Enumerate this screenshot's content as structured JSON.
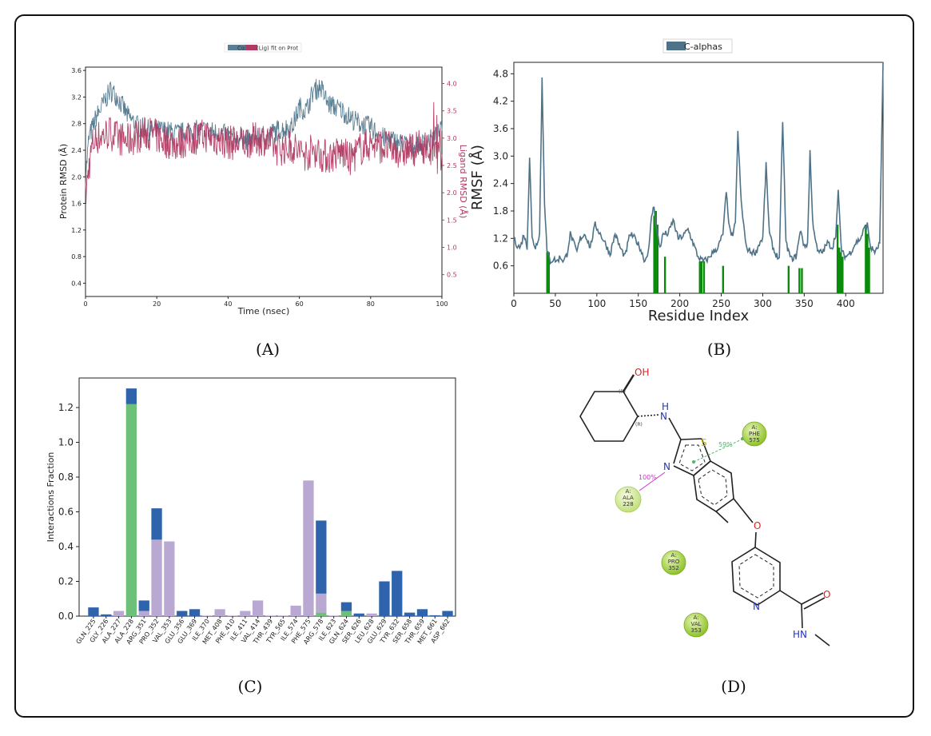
{
  "panels": {
    "a": "(A)",
    "b": "(B)",
    "c": "(C)",
    "d": "(D)"
  },
  "chart_data": [
    {
      "id": "A",
      "type": "line",
      "legend": [
        "Cα",
        "(Lig) fit on Prot"
      ],
      "legend_placement": "top-center",
      "xlabel": "Time (nsec)",
      "ylabel": "Protein RMSD (Å)",
      "y2label": "Ligand RMSD (Å)",
      "xlim": [
        0,
        100
      ],
      "ylim": [
        0.2,
        3.65
      ],
      "y2lim": [
        0.1,
        4.3
      ],
      "xticks": [
        "0",
        "20",
        "40",
        "60",
        "80",
        "100"
      ],
      "yticks": [
        "0.4",
        "0.8",
        "1.2",
        "1.6",
        "2.0",
        "2.4",
        "2.8",
        "3.2",
        "3.6"
      ],
      "y2ticks": [
        "0.5",
        "1.0",
        "1.5",
        "2.0",
        "2.5",
        "3.0",
        "3.5",
        "4.0"
      ],
      "colors": {
        "protein": "#5a7f94",
        "ligand": "#b03a61"
      },
      "series": [
        {
          "name": "Cα",
          "axis": "left",
          "x": [
            0,
            1,
            2,
            3,
            5,
            7,
            9,
            12,
            15,
            18,
            22,
            26,
            30,
            34,
            38,
            42,
            46,
            50,
            54,
            58,
            60,
            62,
            64,
            66,
            68,
            70,
            72,
            74,
            77,
            80,
            83,
            86,
            89,
            92,
            95,
            98,
            100
          ],
          "y": [
            2.0,
            2.6,
            2.75,
            2.9,
            3.1,
            3.3,
            3.2,
            2.9,
            2.75,
            2.7,
            2.7,
            2.65,
            2.7,
            2.7,
            2.65,
            2.6,
            2.55,
            2.6,
            2.7,
            2.75,
            3.05,
            3.0,
            3.3,
            3.35,
            3.1,
            3.05,
            3.0,
            2.9,
            2.8,
            2.75,
            2.6,
            2.55,
            2.5,
            2.45,
            2.5,
            2.6,
            2.7
          ]
        },
        {
          "name": "(Lig) fit on Prot",
          "axis": "right",
          "x": [
            0,
            1,
            2,
            3,
            5,
            7,
            9,
            12,
            15,
            18,
            22,
            26,
            30,
            34,
            38,
            42,
            46,
            50,
            54,
            58,
            60,
            62,
            64,
            66,
            68,
            70,
            72,
            74,
            77,
            80,
            83,
            86,
            89,
            92,
            95,
            98,
            100
          ],
          "y": [
            1.9,
            2.5,
            2.9,
            3.0,
            3.05,
            3.1,
            3.0,
            2.95,
            3.05,
            3.1,
            2.95,
            2.9,
            3.0,
            3.05,
            2.95,
            2.9,
            2.95,
            3.0,
            2.8,
            2.85,
            2.75,
            2.7,
            2.8,
            2.7,
            2.65,
            2.7,
            2.75,
            2.6,
            2.8,
            2.9,
            2.85,
            2.8,
            2.75,
            2.8,
            2.85,
            2.7,
            2.6
          ]
        }
      ]
    },
    {
      "id": "B",
      "type": "line",
      "legend": [
        "C-alphas"
      ],
      "legend_placement": "top-center",
      "xlabel": "Residue Index",
      "ylabel": "RMSF (Å)",
      "xlim": [
        0,
        445
      ],
      "ylim": [
        0,
        5.05
      ],
      "xticks": [
        "0",
        "50",
        "100",
        "150",
        "200",
        "250",
        "300",
        "350",
        "400"
      ],
      "yticks": [
        "0.6",
        "1.2",
        "1.8",
        "2.4",
        "3.0",
        "3.6",
        "4.2",
        "4.8"
      ],
      "colors": {
        "line": "#4e7287",
        "contact": "#0a8a0a"
      },
      "series": [
        {
          "name": "C-alphas",
          "x": [
            0,
            4,
            8,
            12,
            16,
            19,
            22,
            26,
            31,
            34,
            37,
            40,
            44,
            48,
            52,
            56,
            60,
            64,
            68,
            72,
            76,
            80,
            86,
            92,
            98,
            104,
            110,
            116,
            122,
            128,
            134,
            140,
            146,
            152,
            158,
            163,
            166,
            169,
            172,
            176,
            180,
            186,
            192,
            198,
            204,
            210,
            216,
            222,
            228,
            234,
            240,
            246,
            252,
            256,
            260,
            264,
            267,
            270,
            274,
            280,
            286,
            292,
            296,
            300,
            304,
            308,
            314,
            320,
            324,
            328,
            334,
            340,
            346,
            350,
            354,
            357,
            360,
            366,
            372,
            378,
            384,
            388,
            391,
            395,
            400,
            406,
            412,
            418,
            422,
            426,
            430,
            436,
            441,
            445
          ],
          "y": [
            1.2,
            1.05,
            1.0,
            1.3,
            1.0,
            3.0,
            1.2,
            1.0,
            1.3,
            4.7,
            2.0,
            0.9,
            0.7,
            0.75,
            0.7,
            0.8,
            0.7,
            0.85,
            1.3,
            1.1,
            0.9,
            1.2,
            1.3,
            1.0,
            1.5,
            1.3,
            1.1,
            0.85,
            1.3,
            1.0,
            0.8,
            1.3,
            1.2,
            1.0,
            0.7,
            1.0,
            1.7,
            1.9,
            1.4,
            1.0,
            1.3,
            1.3,
            1.6,
            1.2,
            1.25,
            1.4,
            1.1,
            0.8,
            0.7,
            0.75,
            0.9,
            1.0,
            1.3,
            2.2,
            1.4,
            1.2,
            1.6,
            3.5,
            2.0,
            1.0,
            0.9,
            0.9,
            1.1,
            1.2,
            2.8,
            1.3,
            0.9,
            0.75,
            3.8,
            1.1,
            0.75,
            0.8,
            1.4,
            1.0,
            1.1,
            3.1,
            1.6,
            0.9,
            0.9,
            1.1,
            1.0,
            1.3,
            2.2,
            0.9,
            0.8,
            0.9,
            1.1,
            1.2,
            1.4,
            1.5,
            1.0,
            0.9,
            1.1,
            5.0
          ]
        },
        {
          "name": "contacts",
          "x": [
            40,
            42,
            169,
            171,
            173,
            182,
            224,
            226,
            229,
            252,
            331,
            344,
            347,
            390,
            392,
            394,
            396,
            424,
            426,
            428
          ],
          "y": [
            0.9,
            0.9,
            1.7,
            1.8,
            1.5,
            0.8,
            0.7,
            0.7,
            0.7,
            0.6,
            0.6,
            0.55,
            0.55,
            1.5,
            1.0,
            0.9,
            0.8,
            1.5,
            1.3,
            1.0
          ]
        }
      ]
    },
    {
      "id": "C",
      "type": "bar",
      "ylabel": "Interactions Fraction",
      "ylim": [
        0,
        1.37
      ],
      "yticks": [
        "0.0",
        "0.2",
        "0.4",
        "0.6",
        "0.8",
        "1.0",
        "1.2"
      ],
      "categories": [
        "GLN_225",
        "GLY_226",
        "ALA_227",
        "ALA_228",
        "ARG_351",
        "PRO_352",
        "VAL_353",
        "GLU_356",
        "GLU_369",
        "ILE_370",
        "MET_408",
        "PHE_410",
        "ILE_411",
        "VAL_414",
        "THR_439",
        "TYR_565",
        "ILE_574",
        "PHE_575",
        "ARG_578",
        "ILE_623",
        "GLN_624",
        "SER_626",
        "LEU_628",
        "GLU_629",
        "TYR_632",
        "SER_658",
        "THR_659",
        "MET_661",
        "ASP_662"
      ],
      "colors": {
        "H-bonds": "#6cc07a",
        "Hydrophobic": "#b9a9d2",
        "Water bridges": "#2f64ad"
      },
      "series": [
        {
          "name": "H-bonds",
          "values": [
            0,
            0,
            0,
            1.22,
            0,
            0,
            0,
            0,
            0,
            0,
            0,
            0,
            0,
            0,
            0,
            0,
            0,
            0,
            0.02,
            0,
            0.03,
            0,
            0,
            0,
            0,
            0,
            0,
            0,
            0
          ]
        },
        {
          "name": "Hydrophobic",
          "values": [
            0,
            0,
            0.03,
            0,
            0.03,
            0.44,
            0.43,
            0,
            0,
            0.003,
            0.04,
            0.003,
            0.03,
            0.09,
            0.003,
            0.003,
            0.06,
            0.78,
            0.11,
            0.003,
            0,
            0,
            0.015,
            0,
            0,
            0,
            0,
            0,
            0
          ]
        },
        {
          "name": "Water bridges",
          "values": [
            0.05,
            0.01,
            0,
            0.09,
            0.06,
            0.18,
            0,
            0.03,
            0.04,
            0,
            0,
            0,
            0,
            0,
            0,
            0,
            0,
            0,
            0.42,
            0,
            0.05,
            0.015,
            0,
            0.2,
            0.26,
            0.02,
            0.04,
            0.005,
            0.03
          ]
        }
      ]
    }
  ],
  "diagram": {
    "atoms": {
      "oh": "OH",
      "nh_h": "H",
      "nh_n": "N",
      "s": "S",
      "n_ring": "N",
      "o_ether": "O",
      "n_pyr": "N",
      "o_amide": "O",
      "hn": "HN",
      "r1": "(R)",
      "r2": "(R)"
    },
    "residues": [
      {
        "chain": "A:",
        "name": "PHE",
        "num": "575"
      },
      {
        "chain": "A:",
        "name": "ALA",
        "num": "228"
      },
      {
        "chain": "A:",
        "name": "PRO",
        "num": "352"
      },
      {
        "chain": "A:",
        "name": "VAL",
        "num": "353"
      }
    ],
    "interactions": [
      {
        "label": "59%",
        "color": "#56b46a"
      },
      {
        "label": "100%",
        "color": "#cc33cc"
      }
    ],
    "colors": {
      "residue": "#9acd32",
      "oxygen": "#e02020",
      "nitrogen": "#2233cc",
      "sulfur": "#c8b400"
    }
  }
}
